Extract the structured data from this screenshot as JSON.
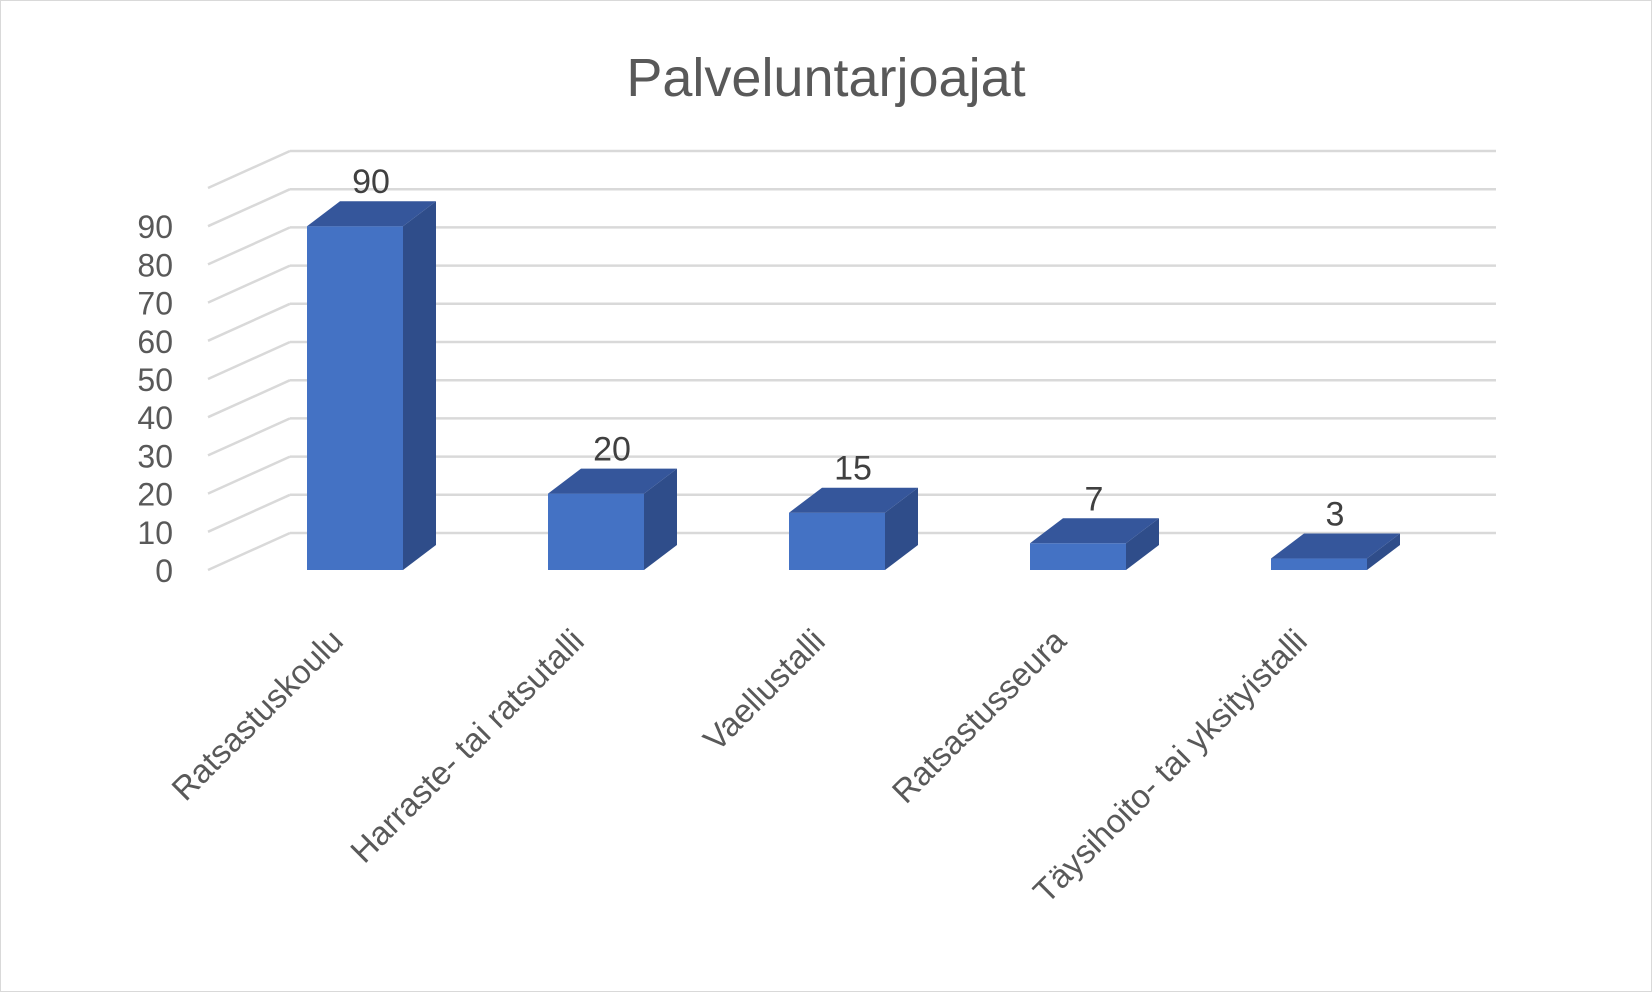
{
  "chart_data": {
    "type": "bar",
    "title": "Palveluntarjoajat",
    "categories": [
      "Ratsastuskoulu",
      "Harraste- tai ratsutalli",
      "Vaellustalli",
      "Ratsastusseura",
      "Täysihoito- tai yksityistalli"
    ],
    "series": [
      {
        "values": [
          90,
          20,
          15,
          7,
          3
        ]
      }
    ],
    "data_labels": [
      "90",
      "20",
      "15",
      "7",
      "3"
    ],
    "yticks": [
      0,
      10,
      20,
      30,
      40,
      50,
      60,
      70,
      80,
      90
    ],
    "ylim": [
      0,
      100
    ],
    "grid": true,
    "legend": "none",
    "style": "3d-column",
    "colors": {
      "front": "#4472c4",
      "side": "#2f4d8a",
      "top": "#35569b",
      "grid": "#d9d9d9",
      "text": "#595959"
    }
  }
}
